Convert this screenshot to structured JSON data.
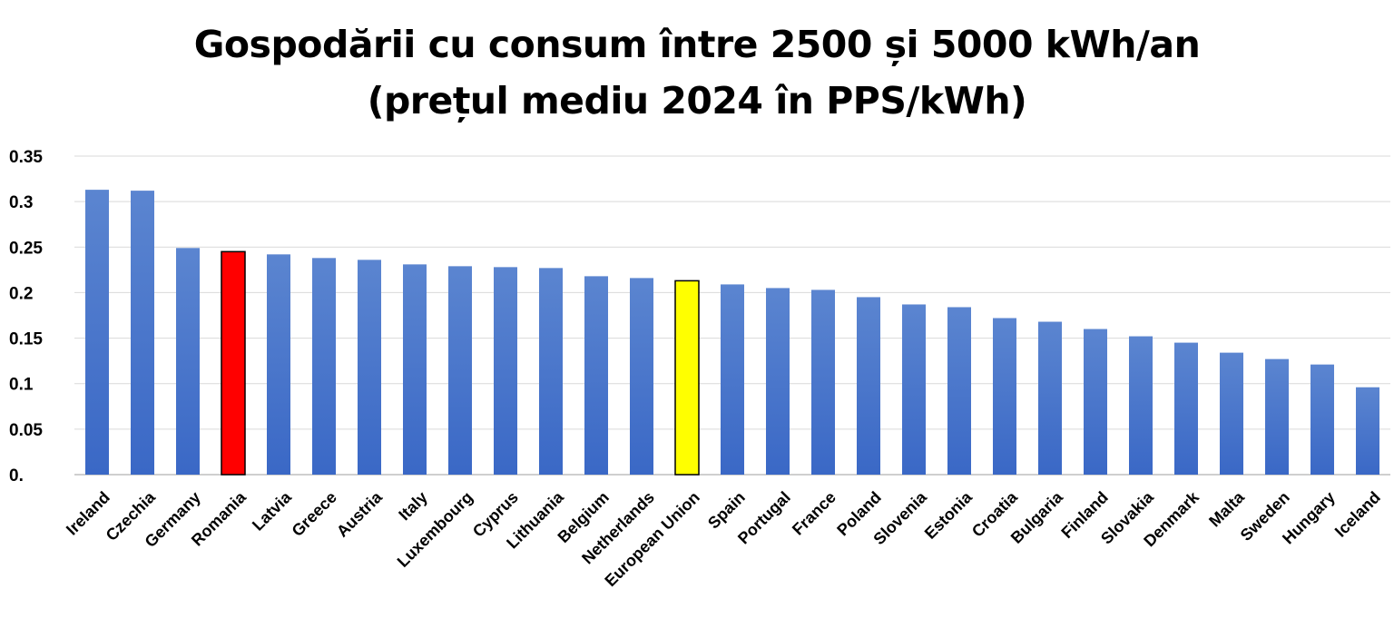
{
  "chart_data": {
    "type": "bar",
    "title_lines": [
      "Gospodării cu consum între 2500 și 5000 kWh/an",
      "(prețul mediu 2024 în PPS/kWh)"
    ],
    "xlabel": "",
    "ylabel": "",
    "ylim": [
      0,
      0.35
    ],
    "yticks": [
      0,
      0.05,
      0.1,
      0.15,
      0.2,
      0.25,
      0.3,
      0.35
    ],
    "ytick_labels": [
      "0.",
      "0.05",
      "0.1",
      "0.15",
      "0.2",
      "0.25",
      "0.3",
      "0.35"
    ],
    "grid": true,
    "legend": "none",
    "categories": [
      "Ireland",
      "Czechia",
      "Germany",
      "Romania",
      "Latvia",
      "Greece",
      "Austria",
      "Italy",
      "Luxembourg",
      "Cyprus",
      "Lithuania",
      "Belgium",
      "Netherlands",
      "European Union",
      "Spain",
      "Portugal",
      "France",
      "Poland",
      "Slovenia",
      "Estonia",
      "Croatia",
      "Bulgaria",
      "Finland",
      "Slovakia",
      "Denmark",
      "Malta",
      "Sweden",
      "Hungary",
      "Iceland"
    ],
    "values": [
      0.313,
      0.312,
      0.249,
      0.245,
      0.242,
      0.238,
      0.236,
      0.231,
      0.229,
      0.228,
      0.227,
      0.218,
      0.216,
      0.213,
      0.209,
      0.205,
      0.203,
      0.195,
      0.187,
      0.184,
      0.172,
      0.168,
      0.16,
      0.152,
      0.145,
      0.134,
      0.127,
      0.121,
      0.096
    ],
    "colors": {
      "default_top": "#5b85d0",
      "default_bottom": "#3a68c6",
      "highlights": {
        "Romania": "#ff0000",
        "European Union": "#ffff00"
      },
      "highlight_stroke": "#000000",
      "grid": "#d9d9d9",
      "axis": "#bfbfbf",
      "text": "#000000"
    }
  }
}
